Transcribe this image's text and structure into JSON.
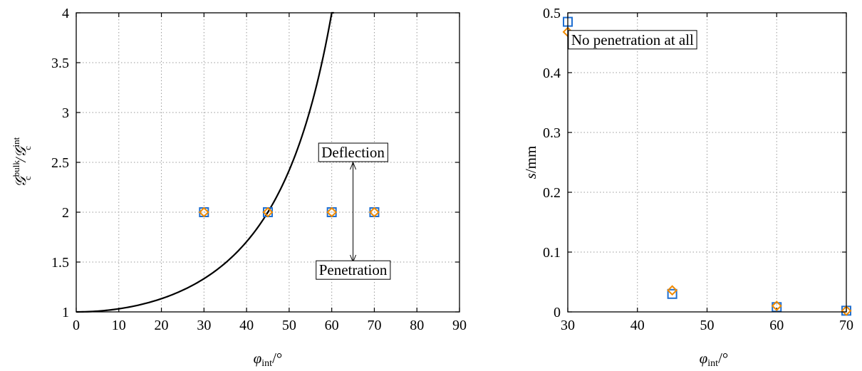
{
  "chart_data": [
    {
      "type": "scatter",
      "x": [
        30,
        45,
        60,
        70
      ],
      "series": [
        {
          "marker": "square",
          "color": "#1f6fd1",
          "y": [
            2,
            2,
            2,
            2
          ]
        },
        {
          "marker": "diamond",
          "color": "#f08a00",
          "y": [
            2,
            2,
            2,
            2
          ]
        }
      ],
      "curve": {
        "type": "line",
        "color": "#000000",
        "function": "1/cos^2(phi)",
        "x_range": [
          0,
          90
        ]
      },
      "xlabel": "φint/°",
      "ylabel": "𝒢c^bulk / 𝒢c^int",
      "xlim": [
        0,
        90
      ],
      "ylim": [
        1,
        4
      ],
      "xticks": [
        "0",
        "10",
        "20",
        "30",
        "40",
        "50",
        "60",
        "70",
        "80",
        "90"
      ],
      "yticks": [
        "1",
        "1.5",
        "2",
        "2.5",
        "3",
        "3.5",
        "4"
      ],
      "grid": true,
      "annotations": [
        {
          "text": "Deflection",
          "x": 65,
          "y": 2.6
        },
        {
          "text": "Penetration",
          "x": 65,
          "y": 1.42
        }
      ],
      "arrow": {
        "x": 65,
        "from": 2,
        "to_up": 2.5,
        "to_down": 1.5
      }
    },
    {
      "type": "scatter",
      "x": [
        30,
        45,
        60,
        70
      ],
      "series": [
        {
          "marker": "square",
          "color": "#1f6fd1",
          "y": [
            0.485,
            0.03,
            0.008,
            0.002
          ]
        },
        {
          "marker": "diamond",
          "color": "#f08a00",
          "y": [
            0.468,
            0.036,
            0.01,
            0.002
          ]
        }
      ],
      "xlabel": "φint/°",
      "ylabel": "s/mm",
      "xlim": [
        30,
        70
      ],
      "ylim": [
        0,
        0.5
      ],
      "xticks": [
        "30",
        "40",
        "50",
        "60",
        "70"
      ],
      "yticks": [
        "0",
        "0.1",
        "0.2",
        "0.3",
        "0.4",
        "0.5"
      ],
      "grid": true,
      "annotations": [
        {
          "text": "No penetration at all",
          "x": 30.5,
          "y": 0.455
        }
      ]
    }
  ],
  "labels": {
    "left_ylabel_main": "𝒢",
    "left_ylabel_sup1": "bulk",
    "left_ylabel_sub1": "c",
    "left_ylabel_slash": "/𝒢",
    "left_ylabel_sup2": "int",
    "left_ylabel_sub2": "c",
    "xlabel_phi": "φ",
    "xlabel_sub": "int",
    "xlabel_unit": "/°",
    "right_ylabel_s": "s",
    "right_ylabel_unit": "/mm"
  }
}
